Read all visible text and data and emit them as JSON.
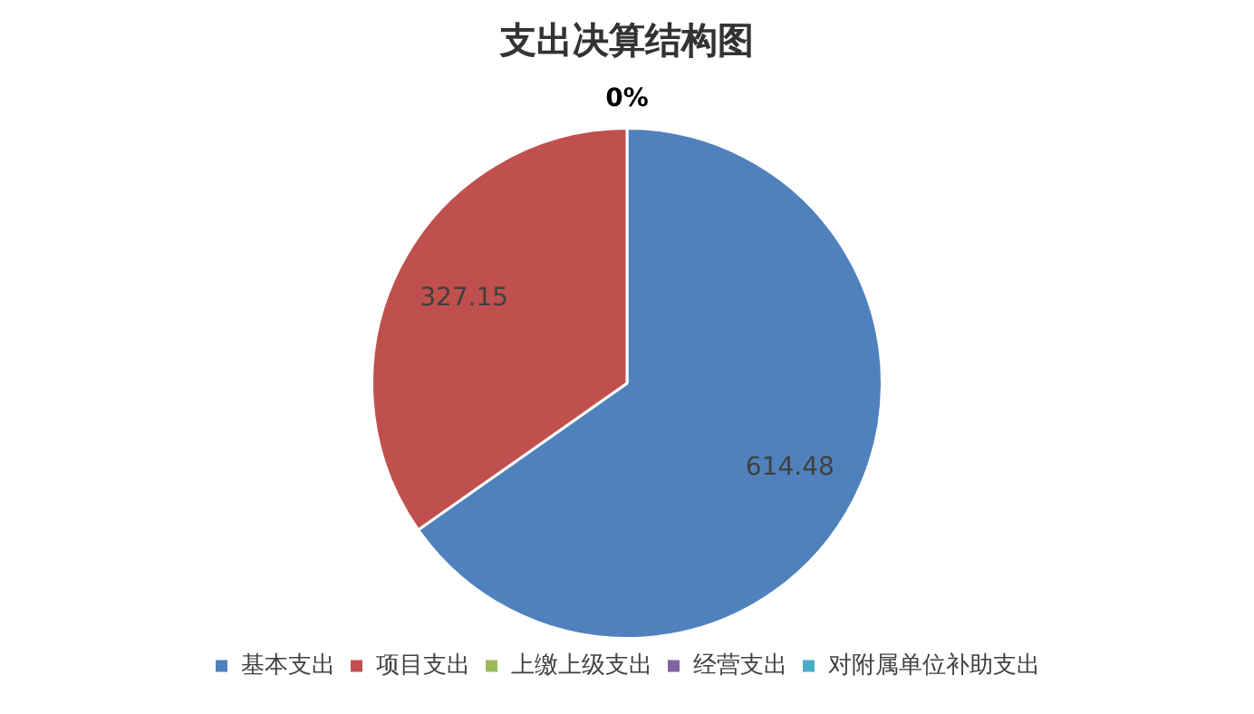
{
  "chart_data": {
    "type": "pie",
    "title": "支出决算结构图",
    "categories": [
      "基本支出",
      "项目支出",
      "上缴上级支出",
      "经营支出",
      "对附属单位补助支出"
    ],
    "values": [
      614.48,
      327.15,
      0,
      0,
      0
    ],
    "colors": [
      "#4f81bd",
      "#c0504d",
      "#9bbb59",
      "#8064a2",
      "#4bacc6"
    ],
    "value_labels": [
      "614.48",
      "327.15",
      "0%",
      null,
      null
    ],
    "legend": "bottom"
  }
}
